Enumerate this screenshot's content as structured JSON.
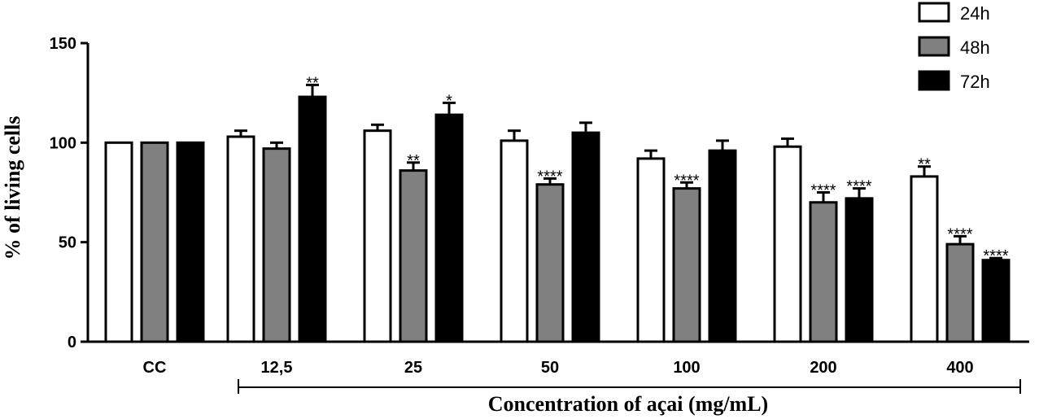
{
  "chart_data": {
    "type": "bar",
    "ylabel": "% of living cells",
    "xlabel": "Concentration of açai (mg/mL)",
    "ylim": [
      0,
      150
    ],
    "yticks": [
      0,
      50,
      100,
      150
    ],
    "grid": false,
    "legend_position": "top-right",
    "categories": [
      "CC",
      "12,5",
      "25",
      "50",
      "100",
      "200",
      "400"
    ],
    "series": [
      {
        "name": "24h",
        "color": "#ffffff",
        "values": [
          100,
          103,
          106,
          101,
          92,
          98,
          83
        ],
        "errors": [
          0,
          3,
          3,
          5,
          4,
          4,
          5
        ],
        "significance": [
          "",
          "",
          "",
          "",
          "",
          "",
          "**"
        ]
      },
      {
        "name": "48h",
        "color": "#808080",
        "values": [
          100,
          97,
          86,
          79,
          77,
          70,
          49
        ],
        "errors": [
          0,
          3,
          4,
          3,
          3,
          5,
          4
        ],
        "significance": [
          "",
          "",
          "**",
          "****",
          "****",
          "****",
          "****"
        ]
      },
      {
        "name": "72h",
        "color": "#000000",
        "values": [
          100,
          123,
          114,
          105,
          96,
          72,
          41
        ],
        "errors": [
          0,
          6,
          6,
          5,
          5,
          5,
          1
        ],
        "significance": [
          "",
          "**",
          "*",
          "",
          "",
          "****",
          "****"
        ]
      }
    ]
  }
}
